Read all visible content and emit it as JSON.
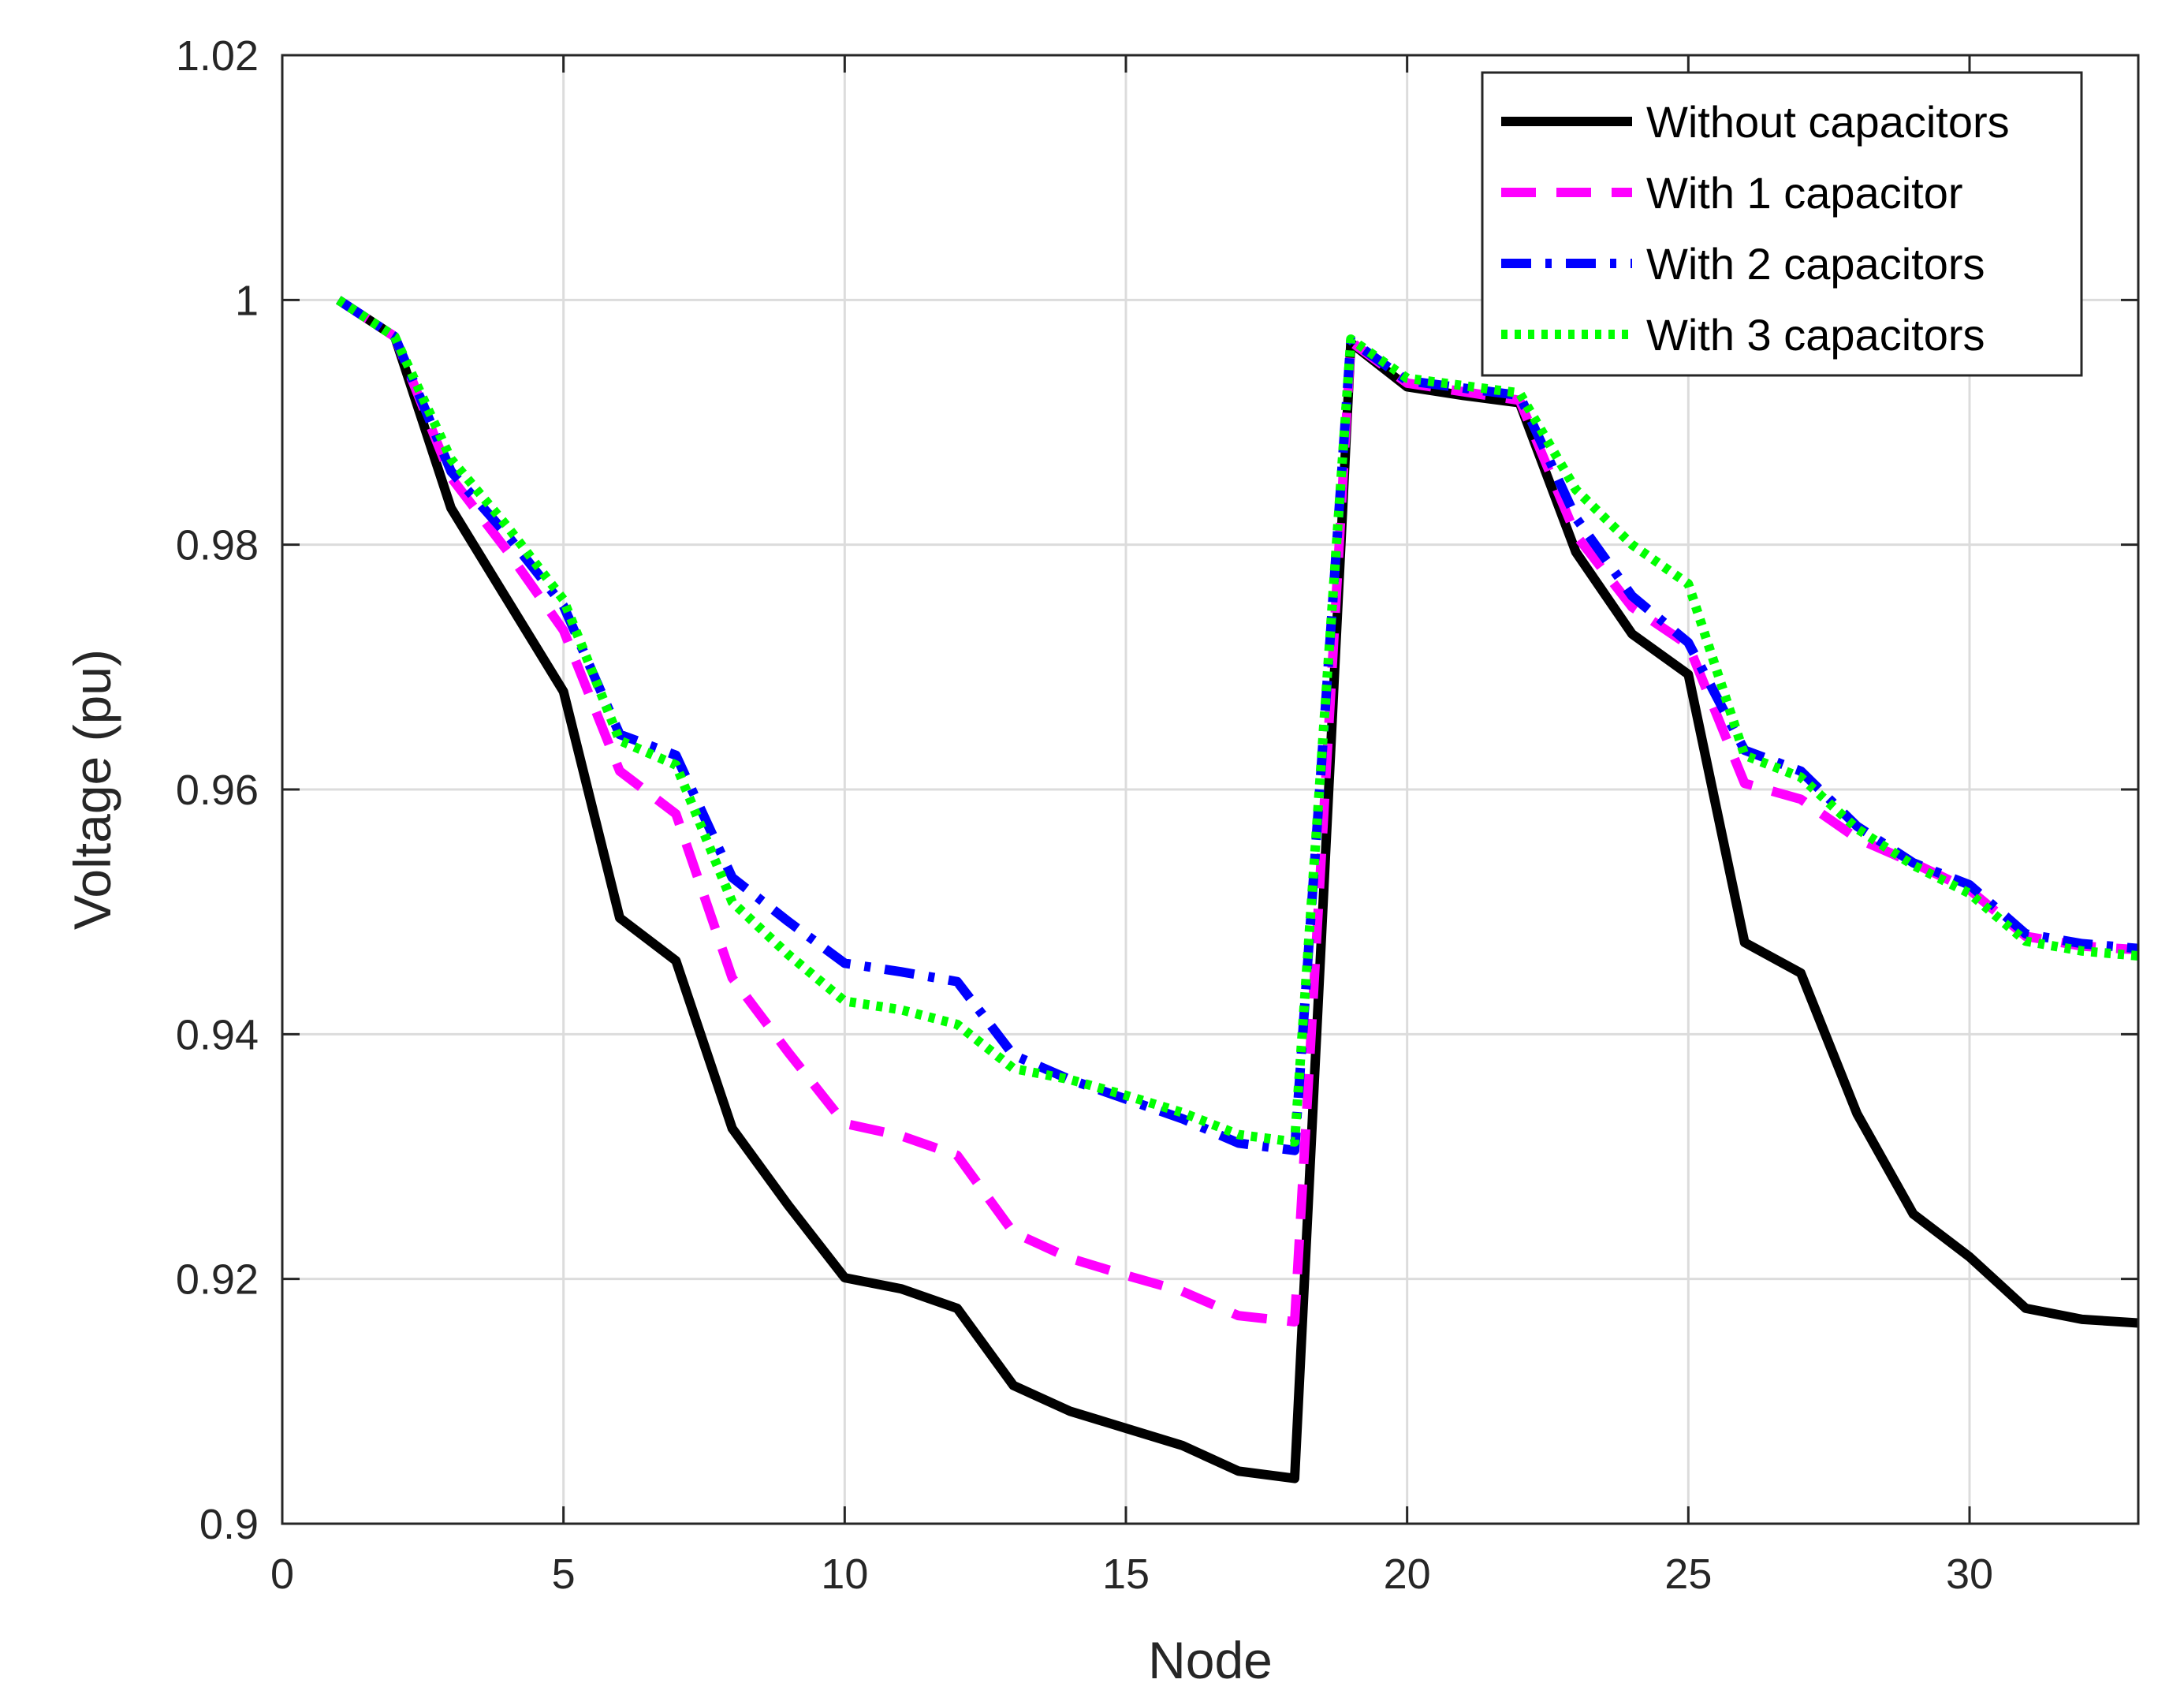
{
  "chart_data": {
    "type": "line",
    "title": "",
    "xlabel": "Node",
    "ylabel": "Voltage (pu)",
    "xlim": [
      0,
      33
    ],
    "ylim": [
      0.9,
      1.02
    ],
    "xticks": [
      0,
      5,
      10,
      15,
      20,
      25,
      30
    ],
    "xtick_labels": [
      "0",
      "5",
      "10",
      "15",
      "20",
      "25",
      "30"
    ],
    "yticks": [
      0.9,
      0.92,
      0.94,
      0.96,
      0.98,
      1.0,
      1.02
    ],
    "ytick_labels": [
      "0.9",
      "0.92",
      "0.94",
      "0.96",
      "0.98",
      "1",
      "1.02"
    ],
    "grid": true,
    "legend_position": "top-right",
    "x": [
      1,
      2,
      3,
      4,
      5,
      6,
      7,
      8,
      9,
      10,
      11,
      12,
      13,
      14,
      15,
      16,
      17,
      18,
      19,
      20,
      21,
      22,
      23,
      24,
      25,
      26,
      27,
      28,
      29,
      30,
      31,
      32,
      33
    ],
    "series": [
      {
        "name": "Without capacitors",
        "color": "#000000",
        "dash": "solid",
        "values": [
          1.0,
          0.997,
          0.983,
          0.9755,
          0.968,
          0.9495,
          0.946,
          0.9323,
          0.926,
          0.9201,
          0.9192,
          0.9176,
          0.9113,
          0.9092,
          0.9078,
          0.9064,
          0.9043,
          0.9037,
          0.9965,
          0.9929,
          0.9922,
          0.9916,
          0.9794,
          0.9727,
          0.9694,
          0.9475,
          0.945,
          0.9335,
          0.9253,
          0.9218,
          0.9176,
          0.9167,
          0.9164
        ]
      },
      {
        "name": "With 1 capacitor",
        "color": "#ff00ff",
        "dash": "dashed",
        "values": [
          1.0,
          0.997,
          0.9855,
          0.9795,
          0.973,
          0.9615,
          0.958,
          0.9446,
          0.9385,
          0.9327,
          0.9317,
          0.9301,
          0.9238,
          0.9217,
          0.9203,
          0.919,
          0.917,
          0.9165,
          0.9966,
          0.9932,
          0.9925,
          0.9918,
          0.9808,
          0.9749,
          0.9718,
          0.9605,
          0.9592,
          0.956,
          0.954,
          0.9518,
          0.948,
          0.9472,
          0.9469
        ]
      },
      {
        "name": "With 2 capacitors",
        "color": "#0000ff",
        "dash": "dashdot",
        "values": [
          1.0,
          0.997,
          0.986,
          0.9808,
          0.975,
          0.9645,
          0.9628,
          0.9528,
          0.9492,
          0.9458,
          0.9451,
          0.9443,
          0.9383,
          0.9363,
          0.9347,
          0.9331,
          0.9311,
          0.9305,
          0.9967,
          0.9934,
          0.9928,
          0.9922,
          0.9822,
          0.9758,
          0.972,
          0.9632,
          0.9615,
          0.957,
          0.954,
          0.9522,
          0.9482,
          0.9474,
          0.947
        ]
      },
      {
        "name": "With 3 capacitors",
        "color": "#00ff00",
        "dash": "dotted",
        "values": [
          1.0,
          0.997,
          0.987,
          0.9815,
          0.9755,
          0.964,
          0.962,
          0.9508,
          0.9465,
          0.9427,
          0.942,
          0.9408,
          0.9372,
          0.9363,
          0.935,
          0.9336,
          0.9318,
          0.9312,
          0.9968,
          0.9936,
          0.993,
          0.9924,
          0.9845,
          0.98,
          0.9768,
          0.9628,
          0.961,
          0.9568,
          0.9538,
          0.9515,
          0.9476,
          0.9468,
          0.9464
        ]
      }
    ]
  }
}
